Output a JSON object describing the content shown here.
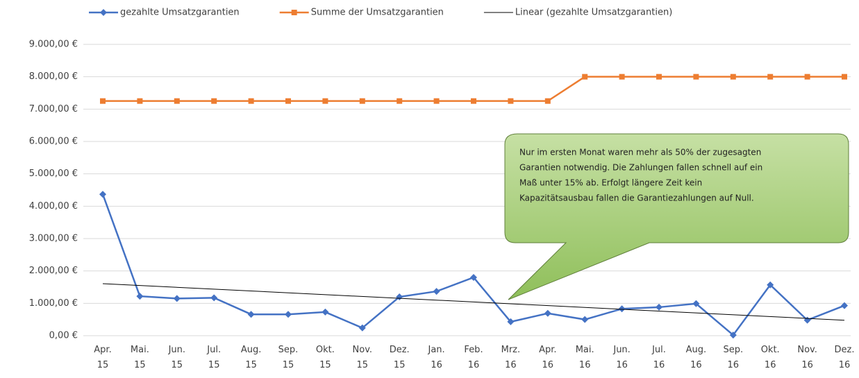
{
  "chart_data": {
    "type": "line",
    "categories": [
      "Apr. 15",
      "Mai. 15",
      "Jun. 15",
      "Jul. 15",
      "Aug. 15",
      "Sep. 15",
      "Okt. 15",
      "Nov. 15",
      "Dez. 15",
      "Jan. 16",
      "Feb. 16",
      "Mrz. 16",
      "Apr. 16",
      "Mai. 16",
      "Jun. 16",
      "Jul. 16",
      "Aug. 16",
      "Sep. 16",
      "Okt. 16",
      "Nov. 16",
      "Dez. 16"
    ],
    "series": [
      {
        "name": "gezahlte Umsatzgarantien",
        "color": "#4472c4",
        "marker": "diamond",
        "values": [
          4370,
          1220,
          1150,
          1170,
          660,
          660,
          730,
          240,
          1200,
          1370,
          1800,
          430,
          690,
          500,
          830,
          880,
          990,
          20,
          1570,
          480,
          930
        ]
      },
      {
        "name": "Summe der Umsatzgarantien",
        "color": "#ed7d31",
        "marker": "square",
        "values": [
          7250,
          7250,
          7250,
          7250,
          7250,
          7250,
          7250,
          7250,
          7250,
          7250,
          7250,
          7250,
          7250,
          8000,
          8000,
          8000,
          8000,
          8000,
          8000,
          8000,
          8000
        ]
      },
      {
        "name": "Linear (gezahlte Umsatzgarantien)",
        "color": "#000000",
        "trend": "linear"
      }
    ],
    "ylim": [
      0,
      9000
    ],
    "yticks": [
      {
        "value": 0,
        "label": "0,00 €"
      },
      {
        "value": 1000,
        "label": "1.000,00 €"
      },
      {
        "value": 2000,
        "label": "2.000,00 €"
      },
      {
        "value": 3000,
        "label": "3.000,00 €"
      },
      {
        "value": 4000,
        "label": "4.000,00 €"
      },
      {
        "value": 5000,
        "label": "5.000,00 €"
      },
      {
        "value": 6000,
        "label": "6.000,00 €"
      },
      {
        "value": 7000,
        "label": "7.000,00 €"
      },
      {
        "value": 8000,
        "label": "8.000,00 €"
      },
      {
        "value": 9000,
        "label": "9.000,00 €"
      }
    ],
    "grid": true,
    "legend": "top",
    "annotation": [
      "Nur im ersten Monat waren mehr als 50% der zugesagten",
      "Garantien notwendig. Die Zahlungen fallen  schnell auf ein",
      "Maß unter 15% ab. Erfolgt längere Zeit kein",
      "Kapazitätsausbau fallen die Garantiezahlungen auf Null."
    ]
  }
}
